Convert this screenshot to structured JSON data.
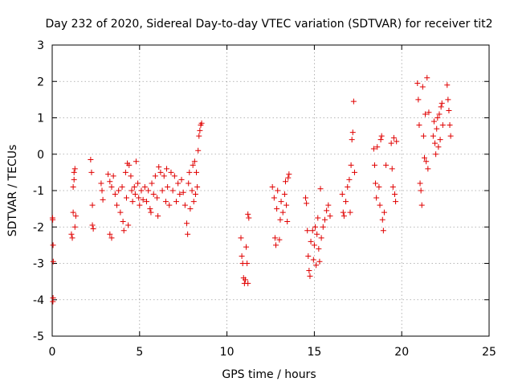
{
  "chart_data": {
    "type": "scatter",
    "title": "Day 232 of 2020, Sidereal Day-to-day VTEC variation (SDTVAR) for receiver tit2",
    "xlabel": "GPS time / hours",
    "ylabel": "SDTVAR / TECUs",
    "xlim": [
      0,
      25
    ],
    "ylim": [
      -5,
      3
    ],
    "xticks": [
      0,
      5,
      10,
      15,
      20,
      25
    ],
    "yticks": [
      -5,
      -4,
      -3,
      -2,
      -1,
      0,
      1,
      2,
      3
    ],
    "xtick_labels": [
      "0",
      "5",
      "10",
      "15",
      "20",
      "25"
    ],
    "ytick_labels": [
      "-5",
      "-4",
      "-3",
      "-2",
      "-1",
      "0",
      "1",
      "2",
      "3"
    ],
    "grid": true,
    "marker": "+",
    "marker_color": "#e00000",
    "series": [
      {
        "name": "SDTVAR",
        "points": [
          [
            0.02,
            -1.75
          ],
          [
            0.03,
            -1.8
          ],
          [
            0.05,
            -2.5
          ],
          [
            0.06,
            -2.95
          ],
          [
            0.05,
            -3.95
          ],
          [
            0.04,
            -4.05
          ],
          [
            1.1,
            -2.2
          ],
          [
            1.15,
            -2.3
          ],
          [
            1.2,
            -1.6
          ],
          [
            1.2,
            -0.9
          ],
          [
            1.25,
            -0.7
          ],
          [
            1.25,
            -0.5
          ],
          [
            1.3,
            -0.4
          ],
          [
            1.35,
            -1.7
          ],
          [
            1.3,
            -2.0
          ],
          [
            2.2,
            -0.15
          ],
          [
            2.25,
            -0.5
          ],
          [
            2.3,
            -1.4
          ],
          [
            2.3,
            -1.95
          ],
          [
            2.35,
            -2.05
          ],
          [
            2.8,
            -0.8
          ],
          [
            2.85,
            -1.0
          ],
          [
            2.9,
            -1.25
          ],
          [
            3.2,
            -0.55
          ],
          [
            3.3,
            -0.75
          ],
          [
            3.4,
            -0.9
          ],
          [
            3.5,
            -0.6
          ],
          [
            3.3,
            -2.2
          ],
          [
            3.4,
            -2.3
          ],
          [
            3.6,
            -1.1
          ],
          [
            3.7,
            -1.4
          ],
          [
            3.8,
            -1.0
          ],
          [
            3.9,
            -1.6
          ],
          [
            4.0,
            -0.9
          ],
          [
            4.05,
            -1.85
          ],
          [
            4.1,
            -2.1
          ],
          [
            4.2,
            -0.5
          ],
          [
            4.25,
            -1.2
          ],
          [
            4.3,
            -0.25
          ],
          [
            4.35,
            -1.95
          ],
          [
            4.4,
            -0.3
          ],
          [
            4.5,
            -0.6
          ],
          [
            4.55,
            -1.0
          ],
          [
            4.6,
            -1.3
          ],
          [
            4.7,
            -0.9
          ],
          [
            4.75,
            -1.1
          ],
          [
            4.8,
            -0.2
          ],
          [
            4.9,
            -0.8
          ],
          [
            4.95,
            -1.2
          ],
          [
            5.0,
            -1.4
          ],
          [
            5.1,
            -1.0
          ],
          [
            5.2,
            -1.25
          ],
          [
            5.3,
            -0.9
          ],
          [
            5.4,
            -1.3
          ],
          [
            5.5,
            -1.0
          ],
          [
            5.6,
            -1.5
          ],
          [
            5.65,
            -1.6
          ],
          [
            5.7,
            -0.8
          ],
          [
            5.8,
            -1.1
          ],
          [
            5.9,
            -0.6
          ],
          [
            6.0,
            -1.2
          ],
          [
            6.05,
            -1.7
          ],
          [
            6.1,
            -0.35
          ],
          [
            6.2,
            -0.5
          ],
          [
            6.3,
            -1.0
          ],
          [
            6.4,
            -0.6
          ],
          [
            6.5,
            -1.3
          ],
          [
            6.55,
            -0.4
          ],
          [
            6.6,
            -0.9
          ],
          [
            6.7,
            -1.4
          ],
          [
            6.8,
            -0.5
          ],
          [
            6.9,
            -1.0
          ],
          [
            7.0,
            -0.6
          ],
          [
            7.1,
            -1.3
          ],
          [
            7.2,
            -0.8
          ],
          [
            7.3,
            -1.1
          ],
          [
            7.4,
            -0.7
          ],
          [
            7.5,
            -1.05
          ],
          [
            7.6,
            -1.4
          ],
          [
            7.7,
            -1.9
          ],
          [
            7.75,
            -2.2
          ],
          [
            7.8,
            -0.8
          ],
          [
            7.85,
            -0.5
          ],
          [
            7.9,
            -1.5
          ],
          [
            8.0,
            -1.0
          ],
          [
            8.05,
            -0.3
          ],
          [
            8.1,
            -1.3
          ],
          [
            8.15,
            -0.2
          ],
          [
            8.2,
            -1.1
          ],
          [
            8.25,
            -0.5
          ],
          [
            8.3,
            -0.9
          ],
          [
            8.35,
            0.1
          ],
          [
            8.4,
            0.5
          ],
          [
            8.45,
            0.65
          ],
          [
            8.5,
            0.8
          ],
          [
            8.55,
            0.85
          ],
          [
            10.8,
            -2.3
          ],
          [
            10.85,
            -2.8
          ],
          [
            10.9,
            -3.0
          ],
          [
            10.95,
            -3.4
          ],
          [
            11.0,
            -3.55
          ],
          [
            11.05,
            -3.45
          ],
          [
            11.1,
            -2.55
          ],
          [
            11.15,
            -3.0
          ],
          [
            11.2,
            -3.55
          ],
          [
            11.2,
            -1.65
          ],
          [
            11.25,
            -1.75
          ],
          [
            12.6,
            -0.9
          ],
          [
            12.7,
            -1.2
          ],
          [
            12.75,
            -2.3
          ],
          [
            12.8,
            -2.5
          ],
          [
            12.85,
            -1.5
          ],
          [
            12.9,
            -1.0
          ],
          [
            13.0,
            -2.35
          ],
          [
            13.05,
            -1.8
          ],
          [
            13.1,
            -1.3
          ],
          [
            13.2,
            -1.6
          ],
          [
            13.3,
            -1.1
          ],
          [
            13.35,
            -0.75
          ],
          [
            13.4,
            -1.4
          ],
          [
            13.45,
            -1.85
          ],
          [
            13.5,
            -0.65
          ],
          [
            13.55,
            -0.55
          ],
          [
            14.5,
            -1.2
          ],
          [
            14.55,
            -1.35
          ],
          [
            14.6,
            -2.1
          ],
          [
            14.65,
            -2.8
          ],
          [
            14.7,
            -3.2
          ],
          [
            14.75,
            -3.35
          ],
          [
            14.8,
            -2.4
          ],
          [
            14.9,
            -2.1
          ],
          [
            14.95,
            -2.9
          ],
          [
            15.0,
            -2.5
          ],
          [
            15.05,
            -2.0
          ],
          [
            15.1,
            -3.05
          ],
          [
            15.15,
            -2.2
          ],
          [
            15.2,
            -1.75
          ],
          [
            15.25,
            -2.6
          ],
          [
            15.3,
            -2.95
          ],
          [
            15.35,
            -0.95
          ],
          [
            15.4,
            -2.3
          ],
          [
            15.5,
            -2.0
          ],
          [
            15.6,
            -1.8
          ],
          [
            15.7,
            -1.55
          ],
          [
            15.8,
            -1.4
          ],
          [
            15.9,
            -1.7
          ],
          [
            16.6,
            -1.1
          ],
          [
            16.65,
            -1.6
          ],
          [
            16.7,
            -1.7
          ],
          [
            16.8,
            -1.3
          ],
          [
            16.9,
            -0.9
          ],
          [
            17.0,
            -0.7
          ],
          [
            17.05,
            -1.6
          ],
          [
            17.1,
            -0.3
          ],
          [
            17.15,
            0.4
          ],
          [
            17.2,
            0.6
          ],
          [
            17.25,
            1.45
          ],
          [
            17.3,
            -0.5
          ],
          [
            18.4,
            0.15
          ],
          [
            18.45,
            -0.3
          ],
          [
            18.5,
            -0.8
          ],
          [
            18.55,
            -1.2
          ],
          [
            18.6,
            0.2
          ],
          [
            18.7,
            -0.9
          ],
          [
            18.75,
            -1.4
          ],
          [
            18.8,
            0.4
          ],
          [
            18.85,
            0.5
          ],
          [
            18.9,
            -1.8
          ],
          [
            18.95,
            -2.1
          ],
          [
            19.0,
            -1.6
          ],
          [
            19.1,
            -0.3
          ],
          [
            19.4,
            0.3
          ],
          [
            19.45,
            -0.4
          ],
          [
            19.5,
            -0.9
          ],
          [
            19.55,
            0.45
          ],
          [
            19.6,
            -1.1
          ],
          [
            19.65,
            -1.3
          ],
          [
            19.7,
            0.35
          ],
          [
            20.9,
            1.95
          ],
          [
            20.95,
            1.5
          ],
          [
            21.0,
            0.8
          ],
          [
            21.05,
            -0.8
          ],
          [
            21.1,
            -1.0
          ],
          [
            21.15,
            -1.4
          ],
          [
            21.2,
            1.85
          ],
          [
            21.25,
            0.5
          ],
          [
            21.3,
            -0.1
          ],
          [
            21.35,
            1.1
          ],
          [
            21.4,
            -0.2
          ],
          [
            21.45,
            2.1
          ],
          [
            21.5,
            -0.4
          ],
          [
            21.55,
            1.15
          ],
          [
            21.8,
            0.5
          ],
          [
            21.85,
            0.9
          ],
          [
            21.9,
            0.3
          ],
          [
            21.95,
            0.0
          ],
          [
            22.0,
            0.7
          ],
          [
            22.05,
            1.0
          ],
          [
            22.1,
            0.2
          ],
          [
            22.15,
            1.1
          ],
          [
            22.2,
            0.4
          ],
          [
            22.25,
            1.3
          ],
          [
            22.3,
            1.4
          ],
          [
            22.35,
            0.8
          ],
          [
            22.6,
            1.9
          ],
          [
            22.65,
            1.5
          ],
          [
            22.7,
            1.2
          ],
          [
            22.75,
            0.8
          ],
          [
            22.8,
            0.5
          ]
        ]
      }
    ]
  }
}
